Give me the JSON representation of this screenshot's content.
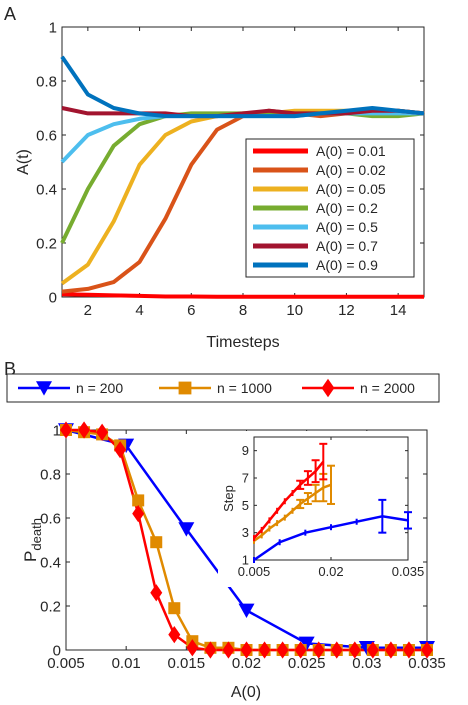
{
  "panels": {
    "a": {
      "letter": "A"
    },
    "b": {
      "letter": "B"
    }
  },
  "chart_data": [
    {
      "type": "line",
      "panel": "A",
      "xlabel": "Timesteps",
      "ylabel": "A(t)",
      "xlim": [
        1,
        15
      ],
      "ylim": [
        0,
        1
      ],
      "xticks": [
        2,
        4,
        6,
        8,
        10,
        12,
        14
      ],
      "yticks": [
        0,
        0.2,
        0.4,
        0.6,
        0.8,
        1
      ],
      "ytick_labels": [
        "0",
        "0.2",
        "0.4",
        "0.6",
        "0.8",
        "1"
      ],
      "grid": false,
      "legend_position": "inside-right",
      "x": [
        1,
        2,
        3,
        4,
        5,
        6,
        7,
        8,
        9,
        10,
        11,
        12,
        13,
        14,
        15
      ],
      "series": [
        {
          "name": "A(0) = 0.01",
          "color": "#ff0000",
          "values": [
            0.01,
            0.008,
            0.006,
            0.004,
            0.002,
            0.002,
            0.001,
            0.001,
            0.001,
            0.001,
            0.001,
            0.001,
            0.001,
            0.001,
            0.001
          ]
        },
        {
          "name": "A(0) = 0.02",
          "color": "#d95319",
          "values": [
            0.02,
            0.03,
            0.055,
            0.13,
            0.29,
            0.49,
            0.62,
            0.67,
            0.69,
            0.68,
            0.67,
            0.68,
            0.69,
            0.69,
            0.68
          ]
        },
        {
          "name": "A(0) = 0.05",
          "color": "#edb120",
          "values": [
            0.05,
            0.12,
            0.28,
            0.49,
            0.6,
            0.65,
            0.67,
            0.68,
            0.68,
            0.69,
            0.69,
            0.69,
            0.69,
            0.69,
            0.68
          ]
        },
        {
          "name": "A(0) = 0.2",
          "color": "#77ac30",
          "values": [
            0.2,
            0.4,
            0.56,
            0.64,
            0.67,
            0.68,
            0.68,
            0.68,
            0.68,
            0.68,
            0.68,
            0.68,
            0.67,
            0.67,
            0.68
          ]
        },
        {
          "name": "A(0) = 0.5",
          "color": "#4dbeee",
          "values": [
            0.5,
            0.6,
            0.64,
            0.66,
            0.67,
            0.67,
            0.67,
            0.67,
            0.67,
            0.67,
            0.68,
            0.68,
            0.68,
            0.68,
            0.68
          ]
        },
        {
          "name": "A(0) = 0.7",
          "color": "#a2142f",
          "values": [
            0.7,
            0.68,
            0.68,
            0.68,
            0.68,
            0.67,
            0.67,
            0.68,
            0.69,
            0.68,
            0.68,
            0.68,
            0.69,
            0.69,
            0.68
          ]
        },
        {
          "name": "A(0) = 0.9",
          "color": "#0072bd",
          "values": [
            0.89,
            0.75,
            0.7,
            0.68,
            0.67,
            0.67,
            0.67,
            0.67,
            0.67,
            0.67,
            0.68,
            0.69,
            0.7,
            0.69,
            0.68
          ]
        }
      ]
    },
    {
      "type": "line",
      "panel": "B",
      "xlabel": "A(0)",
      "ylabel": "P",
      "ylabel_subscript": "death",
      "xlim": [
        0.005,
        0.035
      ],
      "ylim": [
        0,
        1
      ],
      "xticks": [
        0.005,
        0.01,
        0.015,
        0.02,
        0.025,
        0.03,
        0.035
      ],
      "xtick_labels": [
        "0.005",
        "0.01",
        "0.015",
        "0.02",
        "0.025",
        "0.03",
        "0.035"
      ],
      "yticks": [
        0,
        0.2,
        0.4,
        0.6,
        0.8,
        1
      ],
      "ytick_labels": [
        "0",
        "0.2",
        "0.4",
        "0.6",
        "0.8",
        "1"
      ],
      "grid": false,
      "legend_position": "top-outside",
      "series": [
        {
          "name": "n = 200",
          "color": "#0000ff",
          "marker": "triangle-down",
          "x": [
            0.005,
            0.01,
            0.015,
            0.02,
            0.025,
            0.03,
            0.035
          ],
          "values": [
            1.0,
            0.93,
            0.55,
            0.18,
            0.03,
            0.01,
            0.01
          ]
        },
        {
          "name": "n = 1000",
          "color": "#e08a00",
          "marker": "square",
          "x": [
            0.005,
            0.0065,
            0.008,
            0.0095,
            0.011,
            0.0125,
            0.014,
            0.0155,
            0.017,
            0.0185,
            0.02,
            0.0215,
            0.023,
            0.0245,
            0.026,
            0.0275,
            0.029,
            0.0305,
            0.032,
            0.0335,
            0.035
          ],
          "values": [
            1.0,
            0.99,
            0.98,
            0.93,
            0.68,
            0.49,
            0.19,
            0.04,
            0.01,
            0.01,
            0.0,
            0.0,
            0.0,
            0.0,
            0.0,
            0.0,
            0.0,
            0.0,
            0.0,
            0.0,
            0.0
          ]
        },
        {
          "name": "n = 2000",
          "color": "#ff0000",
          "marker": "diamond",
          "x": [
            0.005,
            0.0065,
            0.008,
            0.0095,
            0.011,
            0.0125,
            0.014,
            0.0155,
            0.017,
            0.0185,
            0.02,
            0.0215,
            0.023,
            0.0245,
            0.026,
            0.0275,
            0.029,
            0.0305,
            0.032,
            0.0335,
            0.035
          ],
          "values": [
            1.0,
            1.0,
            0.99,
            0.91,
            0.62,
            0.26,
            0.07,
            0.01,
            0.0,
            0.0,
            0.0,
            0.0,
            0.0,
            0.0,
            0.0,
            0.0,
            0.0,
            0.0,
            0.0,
            0.0,
            0.0
          ]
        }
      ]
    },
    {
      "type": "line",
      "panel": "B-inset",
      "ylabel": "Step",
      "xlim": [
        0.005,
        0.035
      ],
      "ylim": [
        1,
        10
      ],
      "xticks": [
        0.005,
        0.02,
        0.035
      ],
      "xtick_labels": [
        "0.005",
        "0.02",
        "0.035"
      ],
      "yticks": [
        1,
        3,
        5,
        7,
        9
      ],
      "grid": false,
      "series": [
        {
          "name": "n = 200",
          "color": "#0000ff",
          "x": [
            0.005,
            0.01,
            0.015,
            0.02,
            0.025,
            0.03,
            0.035
          ],
          "values": [
            1.0,
            2.3,
            3.0,
            3.4,
            3.8,
            4.2,
            3.9
          ],
          "err": [
            0,
            0,
            0,
            0,
            0,
            1.2,
            0.6
          ]
        },
        {
          "name": "n = 1000",
          "color": "#e08a00",
          "x": [
            0.005,
            0.0065,
            0.008,
            0.0095,
            0.011,
            0.0125,
            0.014,
            0.0155,
            0.017,
            0.0185,
            0.02
          ],
          "values": [
            2.4,
            2.8,
            3.3,
            3.7,
            4.1,
            4.6,
            5.1,
            5.5,
            5.9,
            6.3,
            6.5
          ],
          "err": [
            0,
            0,
            0,
            0,
            0,
            0,
            0.3,
            0.4,
            0.6,
            1.0,
            1.4
          ]
        },
        {
          "name": "n = 2000",
          "color": "#ff0000",
          "x": [
            0.005,
            0.0065,
            0.008,
            0.0095,
            0.011,
            0.0125,
            0.014,
            0.0155,
            0.017,
            0.0185
          ],
          "values": [
            2.6,
            3.2,
            3.9,
            4.6,
            5.3,
            5.9,
            6.5,
            7.0,
            7.5,
            8.2
          ],
          "err": [
            0,
            0,
            0,
            0,
            0,
            0,
            0.3,
            0.5,
            0.8,
            1.3
          ]
        }
      ]
    }
  ]
}
